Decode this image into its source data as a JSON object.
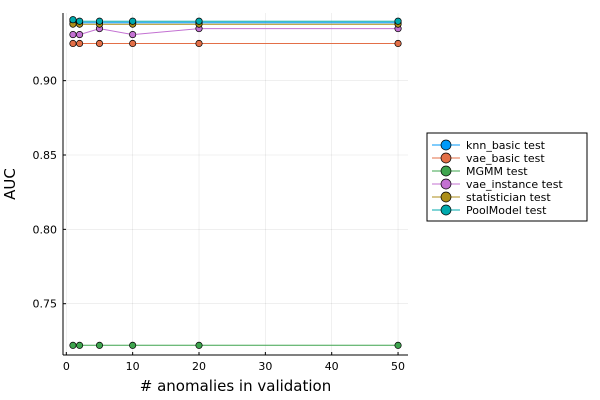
{
  "chart_data": {
    "type": "line",
    "title": "",
    "xlabel": "# anomalies in validation",
    "ylabel": "AUC",
    "xlim": [
      -0.5,
      51.5
    ],
    "ylim": [
      0.7155,
      0.9455
    ],
    "xticks": [
      0,
      10,
      20,
      30,
      40,
      50
    ],
    "yticks": [
      0.75,
      0.8,
      0.85,
      0.9
    ],
    "ytick_labels": [
      "0.75",
      "0.80",
      "0.85",
      "0.90"
    ],
    "grid": true,
    "legend_position": "outside-right",
    "x": [
      1,
      2,
      5,
      10,
      20,
      50
    ],
    "series": [
      {
        "name": "knn_basic test",
        "color": "#009AFA",
        "values": [
          0.94,
          0.939,
          0.939,
          0.939,
          0.939,
          0.939
        ]
      },
      {
        "name": "vae_basic test",
        "color": "#E36F47",
        "values": [
          0.925,
          0.925,
          0.925,
          0.925,
          0.925,
          0.925
        ]
      },
      {
        "name": "MGMM test",
        "color": "#3EA44E",
        "values": [
          0.722,
          0.722,
          0.722,
          0.722,
          0.722,
          0.722
        ]
      },
      {
        "name": "vae_instance test",
        "color": "#C371D2",
        "values": [
          0.931,
          0.931,
          0.935,
          0.931,
          0.935,
          0.935
        ]
      },
      {
        "name": "statistician test",
        "color": "#AC8E18",
        "values": [
          0.938,
          0.938,
          0.938,
          0.938,
          0.938,
          0.938
        ]
      },
      {
        "name": "PoolModel test",
        "color": "#00A9AD",
        "values": [
          0.941,
          0.94,
          0.94,
          0.94,
          0.94,
          0.94
        ]
      }
    ]
  }
}
